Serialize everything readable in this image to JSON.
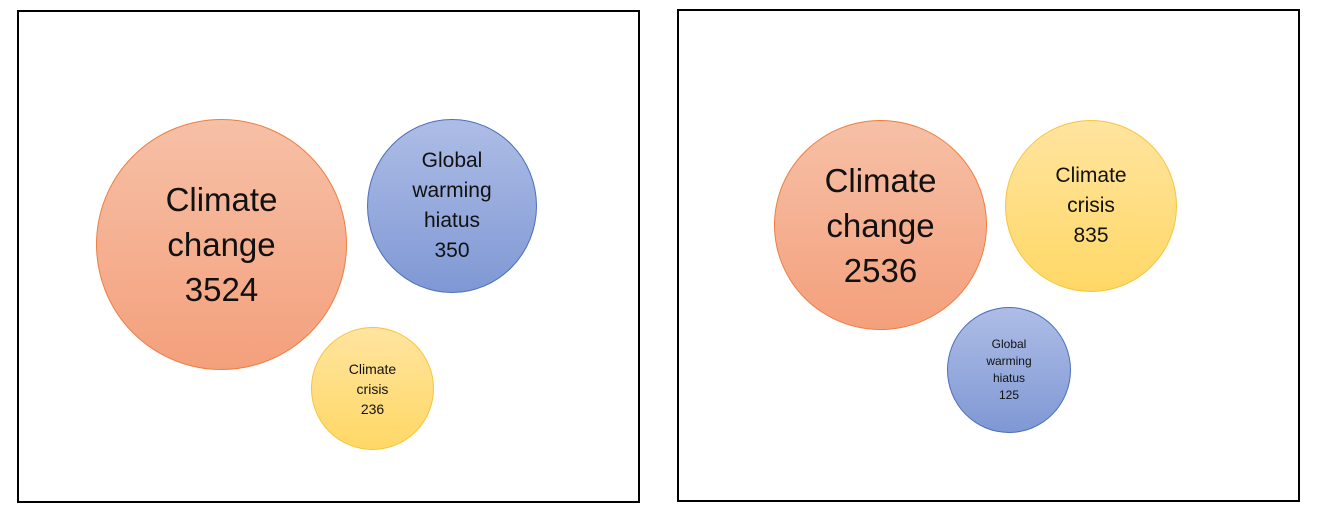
{
  "left_panel": {
    "bubbles": {
      "climate_change": {
        "line1": "Climate",
        "line2": "change",
        "value": "3524"
      },
      "global_warming_hiatus": {
        "line1": "Global",
        "line2": "warming",
        "line3": "hiatus",
        "value": "350"
      },
      "climate_crisis": {
        "line1": "Climate",
        "line2": "crisis",
        "value": "236"
      }
    }
  },
  "right_panel": {
    "bubbles": {
      "climate_change": {
        "line1": "Climate",
        "line2": "change",
        "value": "2536"
      },
      "climate_crisis": {
        "line1": "Climate",
        "line2": "crisis",
        "value": "835"
      },
      "global_warming_hiatus": {
        "line1": "Global",
        "line2": "warming",
        "line3": "hiatus",
        "value": "125"
      }
    }
  },
  "colors": {
    "climate_change": "#f4a07c",
    "global_warming_hiatus": "#7f98d4",
    "climate_crisis": "#ffd866"
  }
}
